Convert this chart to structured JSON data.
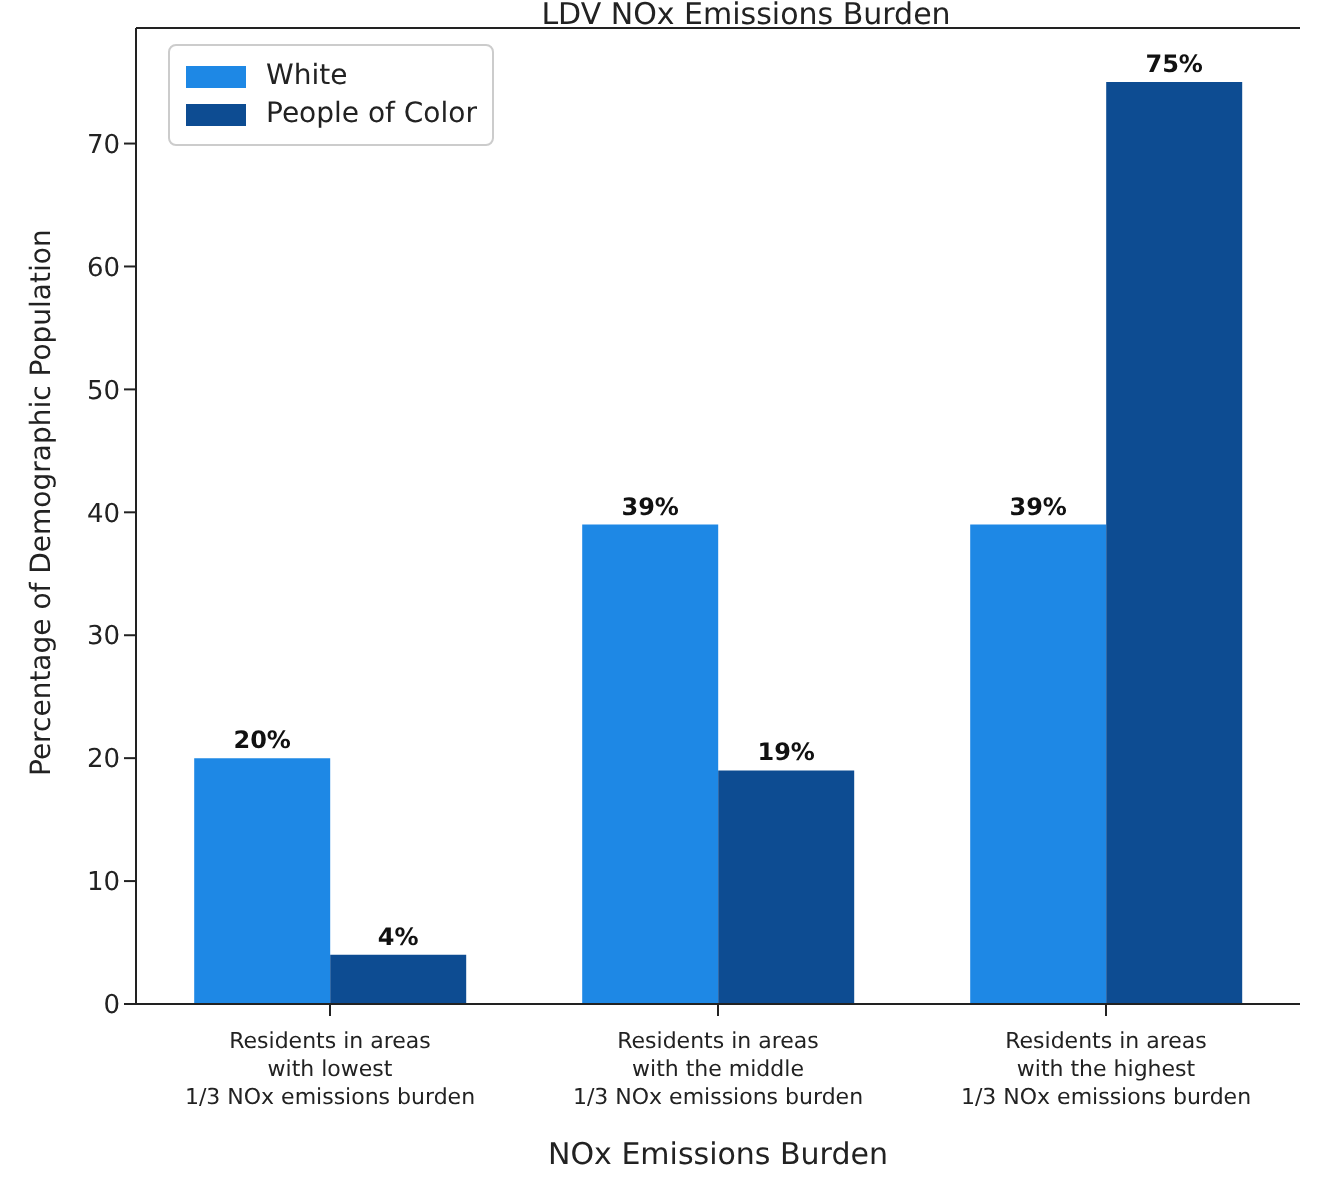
{
  "chart_data": {
    "type": "bar",
    "title": "LDV NOx Emissions Burden",
    "xlabel": "NOx Emissions Burden",
    "ylabel": "Percentage of Demographic Population",
    "categories": [
      "Residents in areas\nwith lowest\n1/3 NOx emissions burden",
      "Residents in areas\nwith the middle\n1/3 NOx emissions burden",
      "Residents in areas\nwith the highest\n1/3 NOx emissions burden"
    ],
    "series": [
      {
        "name": "White",
        "color": "#1e88e5",
        "values": [
          20,
          39,
          39
        ],
        "value_labels": [
          "20%",
          "39%",
          "39%"
        ]
      },
      {
        "name": "People of Color",
        "color": "#0d4c92",
        "values": [
          4,
          19,
          75
        ],
        "value_labels": [
          "4%",
          "19%",
          "75%"
        ]
      }
    ],
    "ylim": [
      0,
      79.4
    ],
    "yticks": [
      0,
      10,
      20,
      30,
      40,
      50,
      60,
      70
    ],
    "grid": false,
    "legend": "top left"
  }
}
